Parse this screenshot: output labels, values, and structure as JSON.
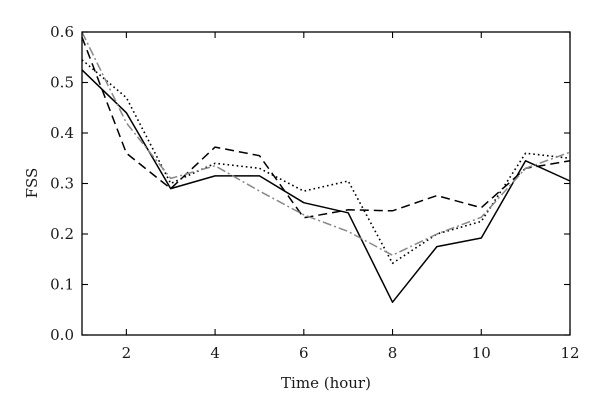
{
  "chart_data": {
    "type": "line",
    "title": "",
    "xlabel": "Time (hour)",
    "ylabel": "FSS",
    "xlim": [
      1,
      12
    ],
    "ylim": [
      0.0,
      0.6
    ],
    "xticks": [
      2,
      4,
      6,
      8,
      10,
      12
    ],
    "xtick_labels": [
      "2",
      "4",
      "6",
      "8",
      "10",
      "12"
    ],
    "yticks": [
      0.0,
      0.1,
      0.2,
      0.3,
      0.4,
      0.5,
      0.6
    ],
    "ytick_labels": [
      "0.0",
      "0.1",
      "0.2",
      "0.3",
      "0.4",
      "0.5",
      "0.6"
    ],
    "grid": false,
    "legend": "none",
    "x": [
      1,
      2,
      3,
      4,
      5,
      6,
      7,
      8,
      9,
      10,
      11,
      12
    ],
    "series": [
      {
        "style": "solid",
        "color": "#000000",
        "values": [
          0.525,
          0.44,
          0.29,
          0.315,
          0.315,
          0.262,
          0.242,
          0.065,
          0.175,
          0.192,
          0.345,
          0.305
        ]
      },
      {
        "style": "dashed",
        "color": "#000000",
        "values": [
          0.59,
          0.36,
          0.29,
          0.372,
          0.355,
          0.232,
          0.248,
          0.246,
          0.276,
          0.252,
          0.33,
          0.345
        ]
      },
      {
        "style": "dotted",
        "color": "#000000",
        "values": [
          0.545,
          0.47,
          0.3,
          0.34,
          0.33,
          0.285,
          0.305,
          0.142,
          0.2,
          0.225,
          0.36,
          0.35
        ]
      },
      {
        "style": "dashdot",
        "color": "#888888",
        "values": [
          0.6,
          0.42,
          0.31,
          0.335,
          0.285,
          0.238,
          0.205,
          0.158,
          0.2,
          0.233,
          0.33,
          0.362
        ]
      }
    ]
  }
}
